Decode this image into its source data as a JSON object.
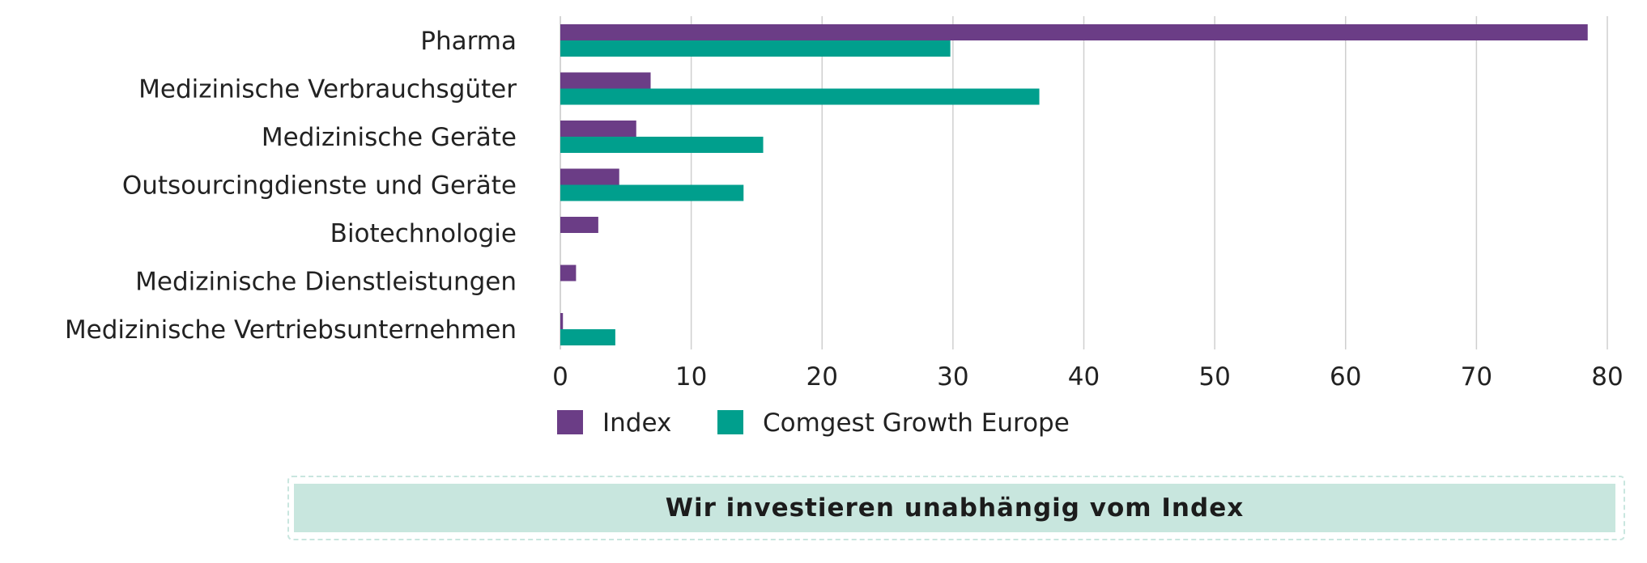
{
  "chart_data": {
    "type": "bar",
    "orientation": "horizontal",
    "categories": [
      "Pharma",
      "Medizinische Verbrauchsgüter",
      "Medizinische Geräte",
      "Outsourcingdienste und Geräte",
      "Biotechnologie",
      "Medizinische Dienstleistungen",
      "Medizinische Vertriebsunternehmen"
    ],
    "series": [
      {
        "name": "Index",
        "color": "#6b3d86",
        "values": [
          78.5,
          6.9,
          5.8,
          4.5,
          2.9,
          1.2,
          0.2
        ]
      },
      {
        "name": "Comgest Growth Europe",
        "color": "#009f8d",
        "values": [
          29.8,
          36.6,
          15.5,
          14.0,
          0,
          0,
          4.2
        ]
      }
    ],
    "xlim": [
      0,
      80
    ],
    "xticks": [
      0,
      10,
      20,
      30,
      40,
      50,
      60,
      70,
      80
    ],
    "grid": true,
    "legend_position": "bottom"
  },
  "banner": {
    "text": "Wir investieren unabhängig vom Index"
  }
}
